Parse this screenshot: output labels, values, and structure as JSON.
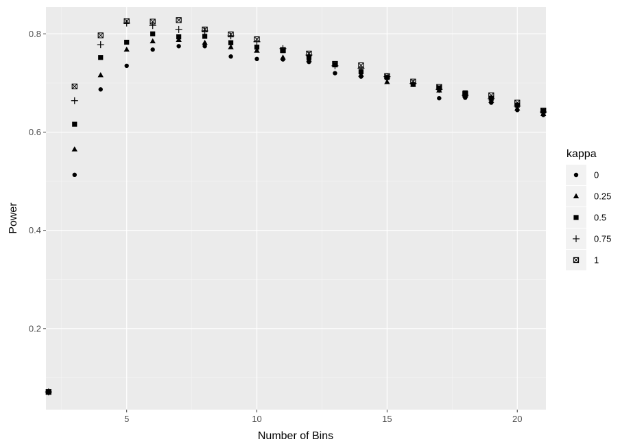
{
  "chart_data": {
    "type": "scatter",
    "xlabel": "Number of Bins",
    "ylabel": "Power",
    "xlim": [
      1.9,
      21.1
    ],
    "ylim": [
      0.035,
      0.855
    ],
    "x_ticks": [
      5,
      10,
      15,
      20
    ],
    "y_ticks": [
      0.2,
      0.4,
      0.6,
      0.8
    ],
    "x_tick_labels": [
      "5",
      "10",
      "15",
      "20"
    ],
    "y_tick_labels": [
      "0.2",
      "0.4",
      "0.6",
      "0.8"
    ],
    "grid": true,
    "legend": {
      "title": "kappa",
      "position": "right"
    },
    "x": [
      2,
      3,
      4,
      5,
      6,
      7,
      8,
      9,
      10,
      11,
      12,
      13,
      14,
      15,
      16,
      17,
      18,
      19,
      20,
      21
    ],
    "series": [
      {
        "name": "0",
        "marker": "circle",
        "values": [
          0.071,
          0.513,
          0.687,
          0.735,
          0.768,
          0.775,
          0.775,
          0.754,
          0.749,
          0.748,
          0.743,
          0.72,
          0.713,
          0.712,
          0.698,
          0.669,
          0.67,
          0.66,
          0.645,
          0.635
        ]
      },
      {
        "name": "0.25",
        "marker": "triangle",
        "values": [
          0.071,
          0.565,
          0.716,
          0.768,
          0.785,
          0.788,
          0.782,
          0.773,
          0.766,
          0.752,
          0.747,
          0.736,
          0.717,
          0.702,
          0.697,
          0.685,
          0.674,
          0.664,
          0.648,
          0.637
        ]
      },
      {
        "name": "0.5",
        "marker": "square",
        "values": [
          0.071,
          0.616,
          0.752,
          0.783,
          0.8,
          0.794,
          0.795,
          0.782,
          0.773,
          0.766,
          0.752,
          0.738,
          0.723,
          0.711,
          0.697,
          0.69,
          0.68,
          0.669,
          0.655,
          0.643
        ]
      },
      {
        "name": "0.75",
        "marker": "plus",
        "values": [
          0.071,
          0.664,
          0.778,
          0.822,
          0.817,
          0.809,
          0.806,
          0.796,
          0.784,
          0.77,
          0.757,
          0.735,
          0.73,
          0.713,
          0.699,
          0.687,
          0.675,
          0.668,
          0.653,
          0.641
        ]
      },
      {
        "name": "1",
        "marker": "square-cross",
        "values": [
          0.071,
          0.693,
          0.797,
          0.826,
          0.825,
          0.828,
          0.809,
          0.799,
          0.789,
          0.767,
          0.76,
          0.739,
          0.736,
          0.714,
          0.703,
          0.692,
          0.678,
          0.675,
          0.66,
          0.644
        ]
      }
    ]
  },
  "colors": {
    "panel_background": "#ebebeb",
    "grid_major": "#ffffff",
    "grid_minor": "#f5f5f5",
    "point": "#000000",
    "tick_text": "#4d4d4d",
    "legend_key_background": "#f2f2f2"
  }
}
